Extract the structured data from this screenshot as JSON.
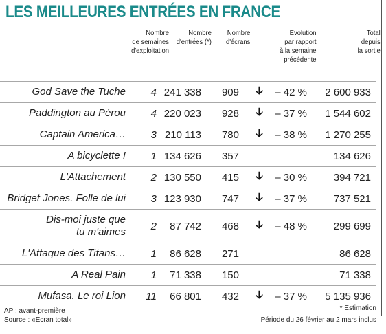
{
  "title": "LES MEILLEURES ENTRÉES EN FRANCE",
  "headers": {
    "weeks": "Nombre\nde semaines\nd'exploitation",
    "entries": "Nombre\nd'entrées (*)",
    "screens": "Nombre\nd'écrans",
    "evolution": "Evolution\npar rapport\nà la semaine\nprécédente",
    "total": "Total\ndepuis\nla sortie"
  },
  "rows": [
    {
      "film": "God Save the Tuche",
      "weeks": "4",
      "entries": "241 338",
      "screens": "909",
      "evolution": "– 42 %",
      "total": "2 600 933"
    },
    {
      "film": "Paddington au Pérou",
      "weeks": "4",
      "entries": "220 023",
      "screens": "928",
      "evolution": "– 37 %",
      "total": "1 544 602"
    },
    {
      "film": "Captain America…",
      "weeks": "3",
      "entries": "210 113",
      "screens": "780",
      "evolution": "– 38 %",
      "total": "1 270 255"
    },
    {
      "film": "A bicyclette !",
      "weeks": "1",
      "entries": "134 626",
      "screens": "357",
      "evolution": "",
      "total": "134 626"
    },
    {
      "film": "L'Attachement",
      "weeks": "2",
      "entries": "130 550",
      "screens": "415",
      "evolution": "– 30 %",
      "total": "394 721"
    },
    {
      "film": "Bridget Jones. Folle de lui",
      "weeks": "3",
      "entries": "123 930",
      "screens": "747",
      "evolution": "– 37 %",
      "total": "737 521"
    },
    {
      "film_line1": "Dis-moi juste que",
      "film_line2": "tu m'aimes",
      "weeks": "2",
      "entries": "87 742",
      "screens": "468",
      "evolution": "– 48 %",
      "total": "299 699"
    },
    {
      "film": "L'Attaque des Titans…",
      "weeks": "1",
      "entries": "86 628",
      "screens": "271",
      "evolution": "",
      "total": "86 628"
    },
    {
      "film": "A Real Pain",
      "weeks": "1",
      "entries": "71 338",
      "screens": "150",
      "evolution": "",
      "total": "71 338"
    },
    {
      "film": "Mufasa. Le roi Lion",
      "weeks": "11",
      "entries": "66 801",
      "screens": "432",
      "evolution": "– 37 %",
      "total": "5 135 936"
    }
  ],
  "arrow_icon": "arrow-down-icon",
  "arrow_glyph": "🡣",
  "footer": {
    "ap": "AP : avant-première",
    "source": "Source : «Ecran total»",
    "estimation": "* Estimation",
    "period": "Période du 26 février au 2 mars inclus"
  }
}
